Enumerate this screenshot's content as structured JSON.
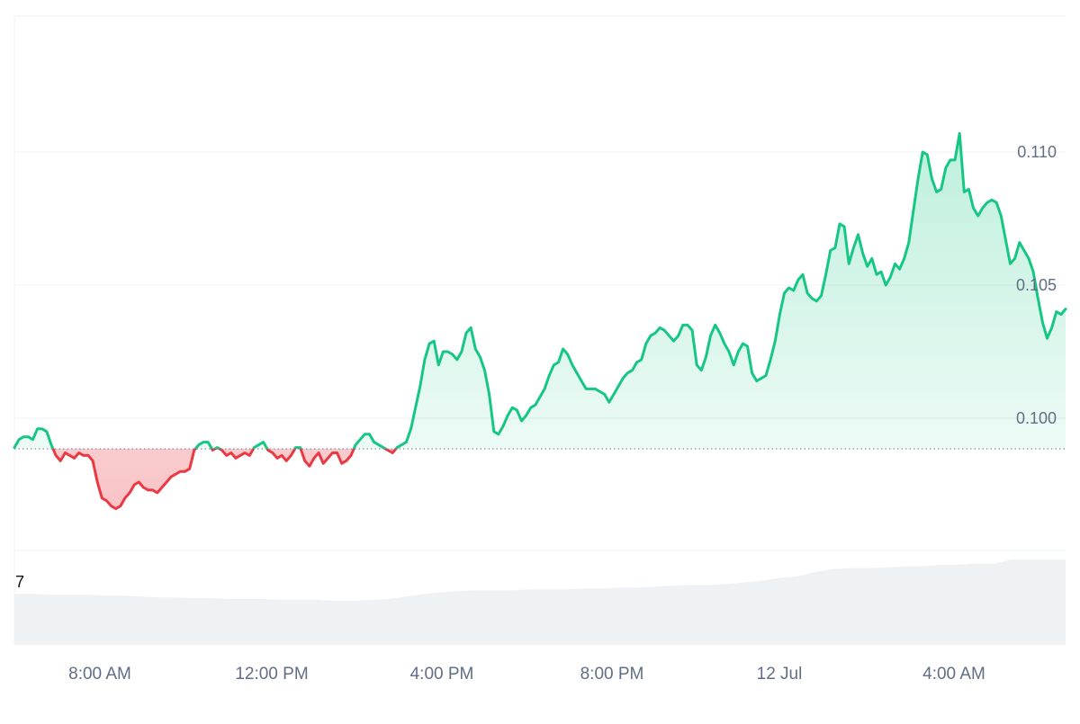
{
  "chart_data": {
    "type": "area",
    "title": "",
    "xlabel": "",
    "ylabel": "",
    "x_tick_labels": [
      "8:00 AM",
      "12:00 PM",
      "4:00 PM",
      "8:00 PM",
      "12 Jul",
      "4:00 AM"
    ],
    "y_tick_labels": [
      "0.100",
      "0.105",
      "0.110"
    ],
    "y_ticks": [
      0.1,
      0.105,
      0.11
    ],
    "ylim": [
      0.095,
      0.1128
    ],
    "baseline": 0.09885,
    "volume_label": "7",
    "grid": true,
    "series": [
      {
        "values": [
          0.0989,
          0.0992,
          0.0993,
          0.0993,
          0.0992,
          0.0996,
          0.0996,
          0.0995,
          0.099,
          0.0986,
          0.0984,
          0.0987,
          0.0986,
          0.0985,
          0.0987,
          0.0986,
          0.0986,
          0.0984,
          0.0976,
          0.097,
          0.0969,
          0.0967,
          0.0966,
          0.0967,
          0.097,
          0.0972,
          0.0975,
          0.0976,
          0.0974,
          0.0973,
          0.0973,
          0.0972,
          0.0974,
          0.0976,
          0.0978,
          0.0979,
          0.098,
          0.098,
          0.0981,
          0.0988,
          0.099,
          0.0991,
          0.0991,
          0.0988,
          0.0989,
          0.0988,
          0.0986,
          0.0987,
          0.0985,
          0.0986,
          0.0987,
          0.0986,
          0.0989,
          0.099,
          0.0991,
          0.0988,
          0.0987,
          0.0985,
          0.0986,
          0.0984,
          0.0986,
          0.0989,
          0.0989,
          0.0984,
          0.0982,
          0.0985,
          0.0987,
          0.0983,
          0.0985,
          0.0987,
          0.0987,
          0.0983,
          0.0984,
          0.0986,
          0.099,
          0.0992,
          0.0994,
          0.0994,
          0.0991,
          0.099,
          0.0989,
          0.0988,
          0.0987,
          0.0989,
          0.099,
          0.0991,
          0.0996,
          0.1004,
          0.1012,
          0.1022,
          0.1028,
          0.1029,
          0.102,
          0.1025,
          0.1025,
          0.1024,
          0.1022,
          0.1025,
          0.1032,
          0.1034,
          0.1026,
          0.1023,
          0.1018,
          0.1009,
          0.0995,
          0.0994,
          0.0997,
          0.1001,
          0.1004,
          0.1003,
          0.0999,
          0.1001,
          0.1004,
          0.1005,
          0.1008,
          0.1011,
          0.1016,
          0.102,
          0.1021,
          0.1026,
          0.1024,
          0.102,
          0.1017,
          0.1014,
          0.1011,
          0.1011,
          0.1011,
          0.101,
          0.1009,
          0.1006,
          0.1009,
          0.1012,
          0.1015,
          0.1017,
          0.1018,
          0.1021,
          0.1022,
          0.1028,
          0.1031,
          0.1032,
          0.1034,
          0.1033,
          0.1031,
          0.1029,
          0.1031,
          0.1035,
          0.1035,
          0.1033,
          0.102,
          0.1018,
          0.1023,
          0.1031,
          0.1035,
          0.1032,
          0.1028,
          0.1025,
          0.102,
          0.1025,
          0.1028,
          0.1027,
          0.1017,
          0.1014,
          0.1015,
          0.1016,
          0.1022,
          0.1029,
          0.1039,
          0.1047,
          0.1049,
          0.1048,
          0.1052,
          0.1054,
          0.1047,
          0.1045,
          0.1044,
          0.1046,
          0.1054,
          0.1063,
          0.1064,
          0.1073,
          0.1072,
          0.1058,
          0.1064,
          0.1069,
          0.1062,
          0.1057,
          0.106,
          0.1054,
          0.1055,
          0.105,
          0.1053,
          0.1058,
          0.1056,
          0.106,
          0.1066,
          0.1078,
          0.109,
          0.11,
          0.1099,
          0.109,
          0.1085,
          0.1086,
          0.1094,
          0.1097,
          0.1097,
          0.1107,
          0.1085,
          0.1086,
          0.1079,
          0.1076,
          0.1079,
          0.1081,
          0.1082,
          0.1081,
          0.1076,
          0.1067,
          0.1058,
          0.106,
          0.1066,
          0.1063,
          0.106,
          0.1055,
          0.1045,
          0.1036,
          0.103,
          0.1034,
          0.104,
          0.1039,
          0.1041
        ]
      }
    ],
    "volume": [
      0.58,
      0.58,
      0.57,
      0.57,
      0.57,
      0.56,
      0.56,
      0.55,
      0.54,
      0.54,
      0.53,
      0.53,
      0.52,
      0.52,
      0.52,
      0.51,
      0.51,
      0.51,
      0.5,
      0.5,
      0.51,
      0.52,
      0.55,
      0.58,
      0.6,
      0.61,
      0.62,
      0.62,
      0.62,
      0.63,
      0.63,
      0.63,
      0.64,
      0.64,
      0.65,
      0.65,
      0.66,
      0.67,
      0.68,
      0.68,
      0.69,
      0.71,
      0.73,
      0.76,
      0.78,
      0.83,
      0.86,
      0.87,
      0.87,
      0.88,
      0.89,
      0.89,
      0.91,
      0.91,
      0.92,
      0.92,
      0.97,
      0.97,
      0.97,
      0.97
    ],
    "colors": {
      "up_line": "#16c784",
      "up_fill": "#16c784",
      "down_line": "#ea3943",
      "down_fill": "#ea3943",
      "grid": "#eef0f3",
      "axis_text": "#616e85",
      "volume": "#eff2f5",
      "baseline": "#7a8294"
    }
  }
}
